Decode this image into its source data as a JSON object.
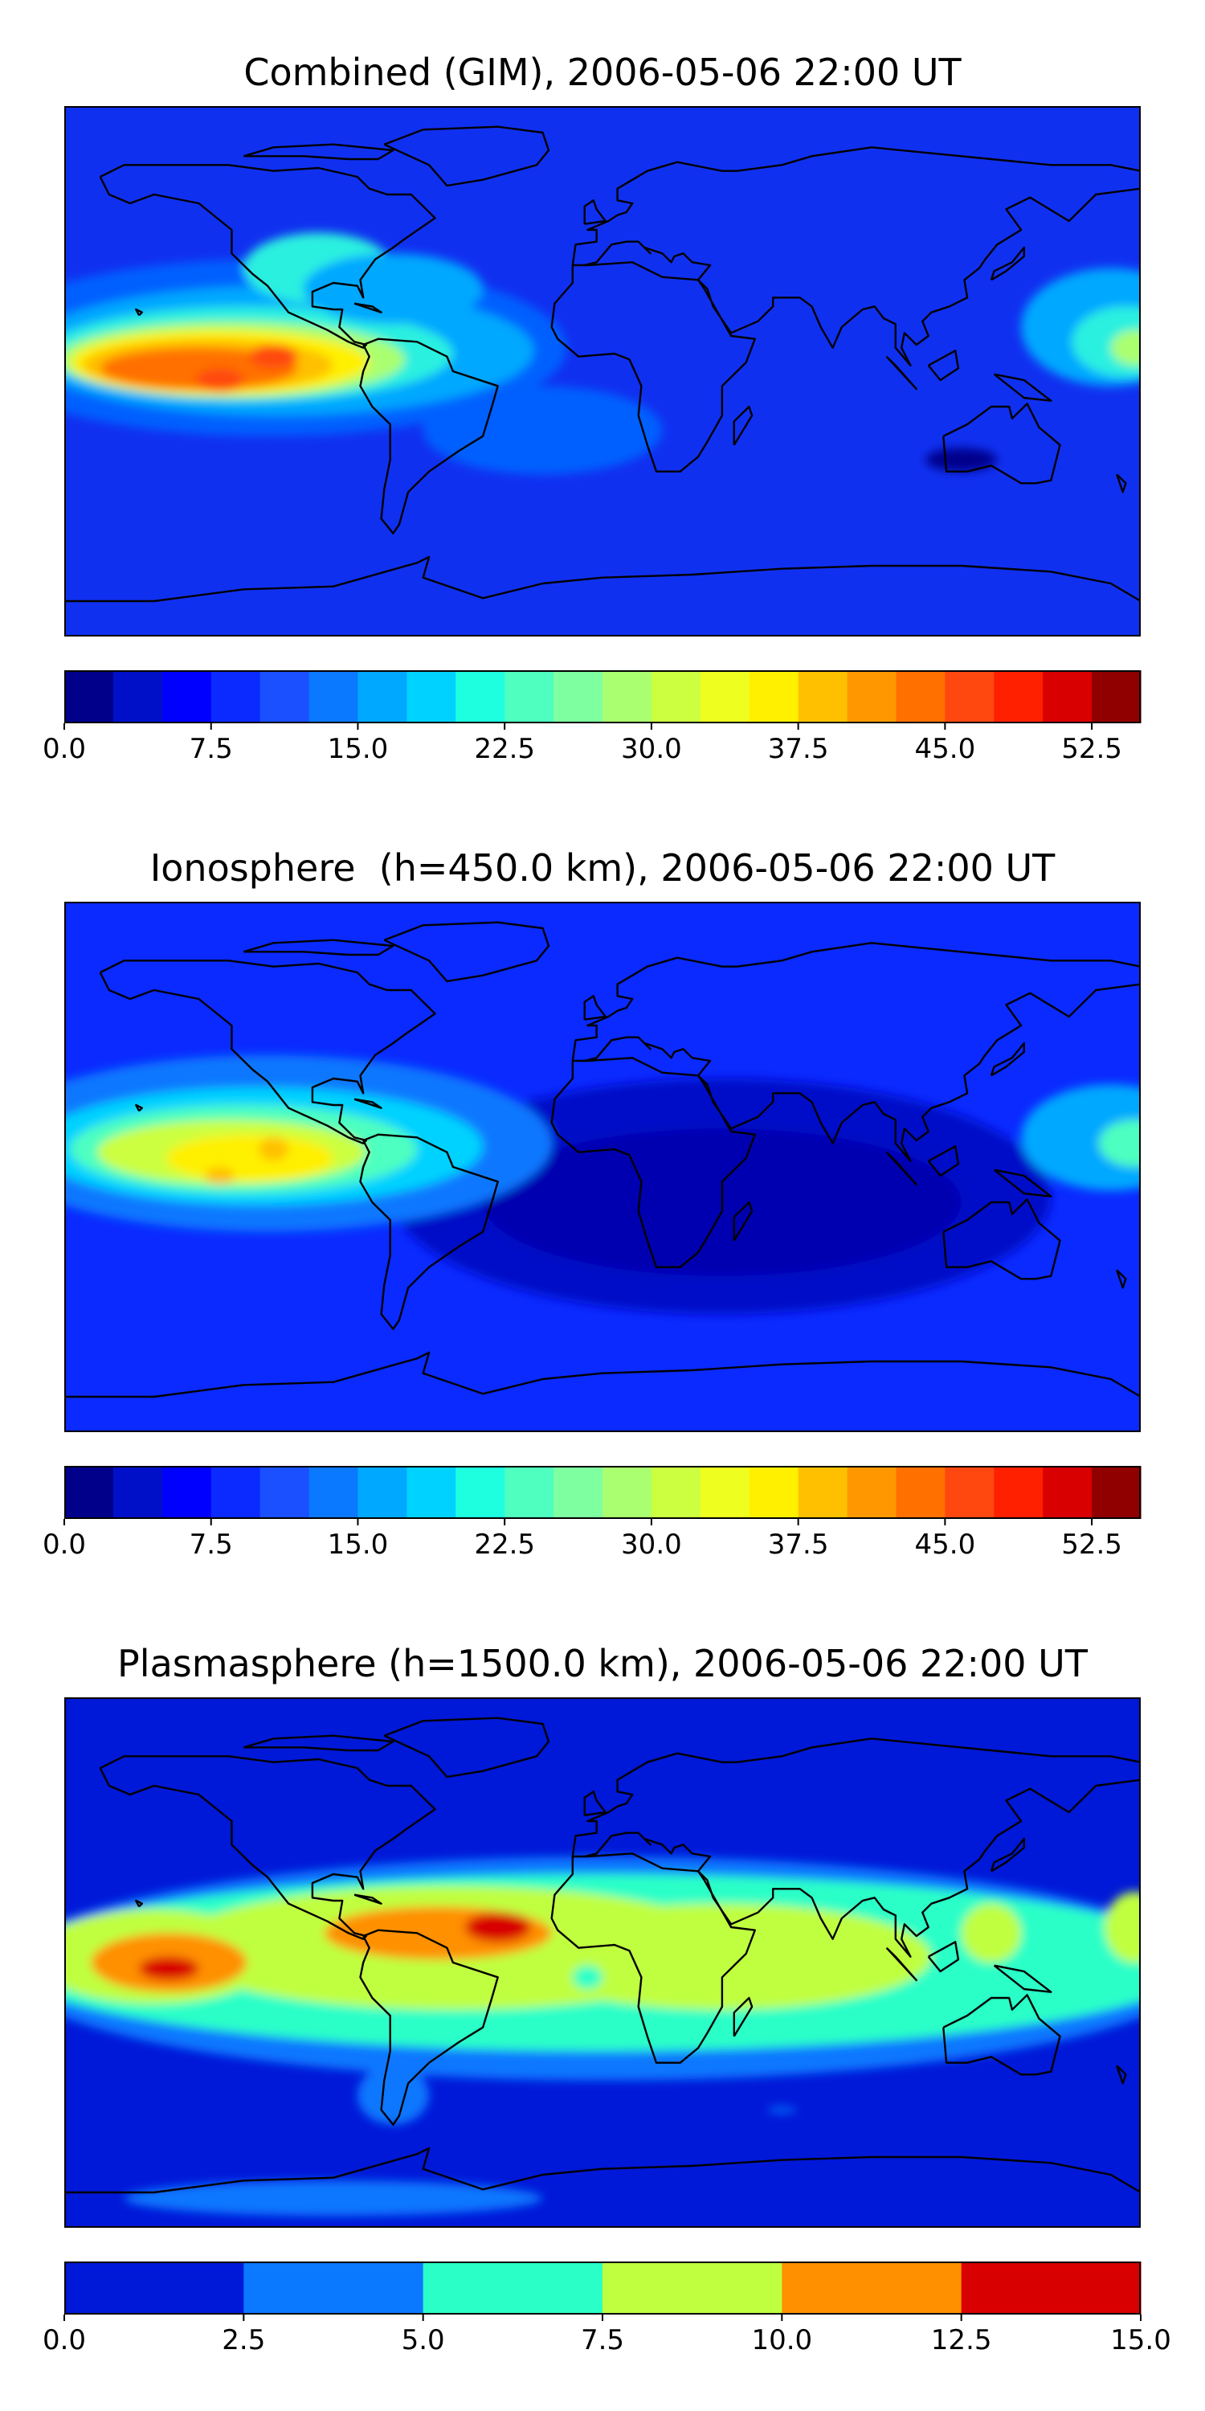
{
  "panels": [
    {
      "title": "Combined (GIM), 2006-05-06 22:00 UT",
      "background": "#1030f0",
      "colorbar": {
        "vmin": 0.0,
        "vmax": 55.0,
        "colors": [
          "#00008b",
          "#0010c8",
          "#0000ff",
          "#0a2aff",
          "#1a50ff",
          "#0a78ff",
          "#00a8ff",
          "#00d2ff",
          "#1effe0",
          "#4effc0",
          "#7effa0",
          "#aaff70",
          "#ccff40",
          "#eeff20",
          "#fff000",
          "#ffc000",
          "#ff9800",
          "#ff7000",
          "#ff4810",
          "#ff2000",
          "#d80000",
          "#900000"
        ],
        "ticks": [
          "0.0",
          "7.5",
          "15.0",
          "22.5",
          "30.0",
          "37.5",
          "45.0",
          "52.5"
        ],
        "tick_values": [
          0.0,
          7.5,
          15.0,
          22.5,
          30.0,
          37.5,
          45.0,
          52.5
        ]
      },
      "regions": [
        {
          "c": "#0060ff",
          "lon": -112,
          "lat": 8,
          "rx": 100,
          "ry": 30
        },
        {
          "c": "#00a8ff",
          "lon": -108,
          "lat": 7,
          "rx": 85,
          "ry": 22
        },
        {
          "c": "#2af0e0",
          "lon": -118,
          "lat": 6,
          "rx": 68,
          "ry": 16
        },
        {
          "c": "#aaff70",
          "lon": -124,
          "lat": 4,
          "rx": 58,
          "ry": 13
        },
        {
          "c": "#fff000",
          "lon": -128,
          "lat": 3,
          "rx": 50,
          "ry": 11
        },
        {
          "c": "#ffc000",
          "lon": -132,
          "lat": 2,
          "rx": 42,
          "ry": 9
        },
        {
          "c": "#ff7000",
          "lon": -135,
          "lat": 1,
          "rx": 33,
          "ry": 7
        },
        {
          "c": "#ff4810",
          "lon": -128,
          "lat": -3,
          "rx": 8,
          "ry": 4
        },
        {
          "c": "#ff4810",
          "lon": -110,
          "lat": 5,
          "rx": 8,
          "ry": 4
        },
        {
          "c": "#2af0e0",
          "lon": -95,
          "lat": 35,
          "rx": 25,
          "ry": 12
        },
        {
          "c": "#00a8ff",
          "lon": -70,
          "lat": 28,
          "rx": 30,
          "ry": 12
        },
        {
          "c": "#00a8ff",
          "lon": 170,
          "lat": 15,
          "rx": 30,
          "ry": 20
        },
        {
          "c": "#2af0e0",
          "lon": 175,
          "lat": 10,
          "rx": 18,
          "ry": 12
        },
        {
          "c": "#aaff70",
          "lon": 178,
          "lat": 8,
          "rx": 8,
          "ry": 6
        },
        {
          "c": "#0060ff",
          "lon": -20,
          "lat": -20,
          "rx": 40,
          "ry": 15
        },
        {
          "c": "#00008b",
          "lon": 120,
          "lat": -30,
          "rx": 12,
          "ry": 4
        }
      ]
    },
    {
      "title": "Ionosphere  (h=450.0 km), 2006-05-06 22:00 UT",
      "background": "#0a2aff",
      "colorbar": {
        "vmin": 0.0,
        "vmax": 55.0,
        "colors": [
          "#00008b",
          "#0010c8",
          "#0000ff",
          "#0a2aff",
          "#1a50ff",
          "#0a78ff",
          "#00a8ff",
          "#00d2ff",
          "#1effe0",
          "#4effc0",
          "#7effa0",
          "#aaff70",
          "#ccff40",
          "#eeff20",
          "#fff000",
          "#ffc000",
          "#ff9800",
          "#ff7000",
          "#ff4810",
          "#ff2000",
          "#d80000",
          "#900000"
        ],
        "ticks": [
          "0.0",
          "7.5",
          "15.0",
          "22.5",
          "30.0",
          "37.5",
          "45.0",
          "52.5"
        ],
        "tick_values": [
          0.0,
          7.5,
          15.0,
          22.5,
          30.0,
          37.5,
          45.0,
          52.5
        ]
      },
      "regions": [
        {
          "c": "#0010c8",
          "lon": 40,
          "lat": -10,
          "rx": 110,
          "ry": 40
        },
        {
          "c": "#0000b0",
          "lon": 40,
          "lat": -12,
          "rx": 80,
          "ry": 25
        },
        {
          "c": "#0a78ff",
          "lon": -112,
          "lat": 8,
          "rx": 95,
          "ry": 30
        },
        {
          "c": "#00d2ff",
          "lon": -115,
          "lat": 7,
          "rx": 75,
          "ry": 20
        },
        {
          "c": "#4effc0",
          "lon": -120,
          "lat": 6,
          "rx": 58,
          "ry": 15
        },
        {
          "c": "#ccff40",
          "lon": -124,
          "lat": 5,
          "rx": 45,
          "ry": 11
        },
        {
          "c": "#fff000",
          "lon": -118,
          "lat": 3,
          "rx": 28,
          "ry": 8
        },
        {
          "c": "#ffc000",
          "lon": -110,
          "lat": 6,
          "rx": 5,
          "ry": 4
        },
        {
          "c": "#ffc000",
          "lon": -128,
          "lat": -3,
          "rx": 5,
          "ry": 3
        },
        {
          "c": "#00a8ff",
          "lon": 170,
          "lat": 10,
          "rx": 30,
          "ry": 18
        },
        {
          "c": "#4effc0",
          "lon": 178,
          "lat": 8,
          "rx": 12,
          "ry": 8
        }
      ]
    },
    {
      "title": "Plasmasphere (h=1500.0 km), 2006-05-06 22:00 UT",
      "background": "#0018d8",
      "colorbar": {
        "vmin": 0.0,
        "vmax": 15.0,
        "colors": [
          "#0018d8",
          "#0a78ff",
          "#2affc8",
          "#c0ff40",
          "#ff9000",
          "#d80000"
        ],
        "ticks": [
          "0.0",
          "2.5",
          "5.0",
          "7.5",
          "10.0",
          "12.5",
          "15.0"
        ],
        "tick_values": [
          0.0,
          2.5,
          5.0,
          7.5,
          10.0,
          12.5,
          15.0
        ]
      },
      "regions": [
        {
          "c": "#0a78ff",
          "lon": 0,
          "lat": -2,
          "rx": 200,
          "ry": 38
        },
        {
          "c": "#2affc8",
          "lon": 0,
          "lat": 0,
          "rx": 200,
          "ry": 30
        },
        {
          "c": "#c0ff40",
          "lon": -50,
          "lat": 5,
          "rx": 95,
          "ry": 21
        },
        {
          "c": "#c0ff40",
          "lon": 40,
          "lat": 2,
          "rx": 70,
          "ry": 18
        },
        {
          "c": "#c0ff40",
          "lon": -150,
          "lat": 2,
          "rx": 40,
          "ry": 16
        },
        {
          "c": "#c0ff40",
          "lon": 130,
          "lat": 10,
          "rx": 10,
          "ry": 10
        },
        {
          "c": "#c0ff40",
          "lon": 178,
          "lat": 12,
          "rx": 10,
          "ry": 12
        },
        {
          "c": "#ff9000",
          "lon": -145,
          "lat": 0,
          "rx": 26,
          "ry": 10
        },
        {
          "c": "#ff9000",
          "lon": -55,
          "lat": 10,
          "rx": 38,
          "ry": 9
        },
        {
          "c": "#d80000",
          "lon": -145,
          "lat": -2,
          "rx": 10,
          "ry": 4
        },
        {
          "c": "#d80000",
          "lon": -35,
          "lat": 12,
          "rx": 11,
          "ry": 5
        },
        {
          "c": "#0a78ff",
          "lon": -70,
          "lat": -45,
          "rx": 12,
          "ry": 10
        },
        {
          "c": "#2affc8",
          "lon": -5,
          "lat": -5,
          "rx": 5,
          "ry": 4
        },
        {
          "c": "#0a78ff",
          "lon": -90,
          "lat": -80,
          "rx": 70,
          "ry": 6
        },
        {
          "c": "#0a78ff",
          "lon": 60,
          "lat": -50,
          "rx": 5,
          "ry": 1
        }
      ]
    }
  ]
}
